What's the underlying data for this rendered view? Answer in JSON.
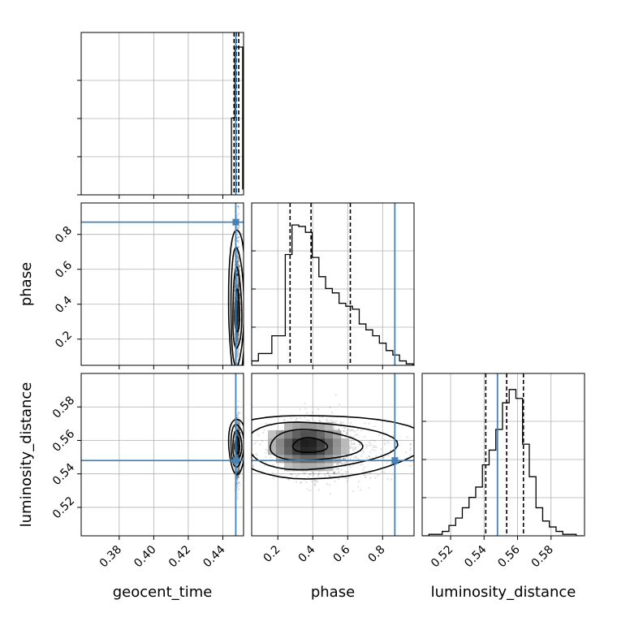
{
  "chart_data": {
    "type": "corner",
    "parameters": [
      "geocent_time",
      "phase",
      "luminosity_distance"
    ],
    "axis_labels": {
      "x": [
        "geocent_time",
        "phase",
        "luminosity_distance"
      ],
      "y": [
        "",
        "phase",
        "luminosity_distance"
      ]
    },
    "ranges": {
      "geocent_time": [
        0.358,
        0.452
      ],
      "phase": [
        0.05,
        0.98
      ],
      "luminosity_distance": [
        0.503,
        0.6
      ]
    },
    "ticks": {
      "geocent_time": [
        "0.38",
        "0.40",
        "0.42",
        "0.44"
      ],
      "phase": [
        "0.2",
        "0.4",
        "0.6",
        "0.8"
      ],
      "luminosity_distance": [
        "0.52",
        "0.54",
        "0.56",
        "0.58"
      ]
    },
    "truths": {
      "geocent_time": 0.4475,
      "phase": 0.87,
      "luminosity_distance": 0.548
    },
    "quantiles": {
      "geocent_time": [
        0.4465,
        0.4478,
        0.4492
      ],
      "phase": [
        0.27,
        0.39,
        0.615
      ],
      "luminosity_distance": [
        0.541,
        0.5535,
        0.5635
      ]
    },
    "histograms": {
      "geocent_time": {
        "edges": [
          0.445,
          0.447,
          0.449,
          0.4515,
          0.4545
        ],
        "counts": [
          0.52,
          1.0,
          1.0,
          0.04
        ]
      },
      "phase": {
        "edges": [
          0.05,
          0.0885,
          0.127,
          0.1655,
          0.204,
          0.2425,
          0.281,
          0.3195,
          0.358,
          0.3965,
          0.435,
          0.4735,
          0.512,
          0.5505,
          0.589,
          0.6275,
          0.666,
          0.7045,
          0.743,
          0.7815,
          0.82,
          0.8585,
          0.897,
          0.9355,
          0.974
        ],
        "counts": [
          0.03,
          0.08,
          0.08,
          0.2,
          0.2,
          0.75,
          0.95,
          0.94,
          0.9,
          0.73,
          0.6,
          0.52,
          0.49,
          0.42,
          0.4,
          0.38,
          0.28,
          0.24,
          0.2,
          0.15,
          0.1,
          0.07,
          0.03,
          0.01
        ]
      },
      "luminosity_distance": {
        "edges": [
          0.503,
          0.507,
          0.511,
          0.515,
          0.519,
          0.523,
          0.527,
          0.531,
          0.535,
          0.539,
          0.543,
          0.547,
          0.551,
          0.555,
          0.559,
          0.563,
          0.567,
          0.571,
          0.575,
          0.579,
          0.583,
          0.587,
          0.591,
          0.595,
          0.599
        ],
        "counts": [
          0.0,
          0.01,
          0.01,
          0.03,
          0.07,
          0.12,
          0.19,
          0.26,
          0.33,
          0.48,
          0.58,
          0.72,
          0.9,
          0.99,
          0.93,
          0.62,
          0.4,
          0.19,
          0.1,
          0.06,
          0.03,
          0.01,
          0.01,
          0.0
        ]
      }
    },
    "grid": true
  }
}
